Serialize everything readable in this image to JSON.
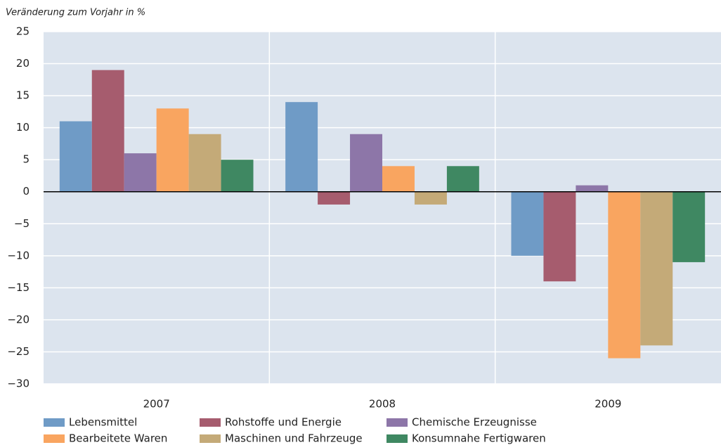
{
  "chart_data": {
    "type": "bar",
    "y_label": "Veränderung zum Vorjahr in %",
    "categories": [
      "2007",
      "2008",
      "2009"
    ],
    "series": [
      {
        "name": "Lebensmittel",
        "color": "#6f9bc6",
        "values": [
          11,
          14,
          -10
        ]
      },
      {
        "name": "Rohstoffe und Energie",
        "color": "#a65c6e",
        "values": [
          19,
          -2,
          -14
        ]
      },
      {
        "name": "Chemische Erzeugnisse",
        "color": "#8d76a8",
        "values": [
          6,
          9,
          1
        ]
      },
      {
        "name": "Bearbeitete Waren",
        "color": "#f9a560",
        "values": [
          13,
          4,
          -26
        ]
      },
      {
        "name": "Maschinen und Fahrzeuge",
        "color": "#c4aa78",
        "values": [
          9,
          -2,
          -24
        ]
      },
      {
        "name": "Konsumnahe Fertigwaren",
        "color": "#3f8862",
        "values": [
          5,
          4,
          -11
        ]
      }
    ],
    "ylim": [
      -30,
      25
    ],
    "yticks": [
      {
        "value": -30,
        "label": "−30"
      },
      {
        "value": -25,
        "label": "−25"
      },
      {
        "value": -20,
        "label": "−20"
      },
      {
        "value": -15,
        "label": "−15"
      },
      {
        "value": -10,
        "label": "−10"
      },
      {
        "value": -5,
        "label": "−5"
      },
      0,
      5,
      10,
      15,
      20,
      25
    ],
    "grid": true
  }
}
